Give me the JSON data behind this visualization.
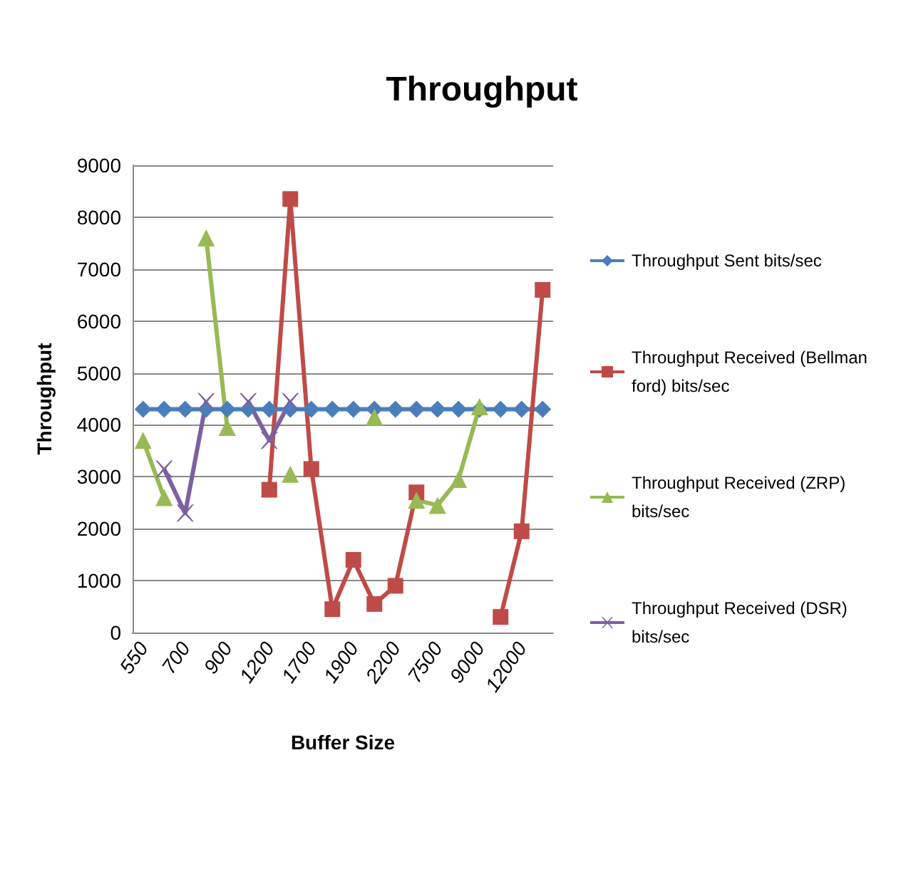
{
  "chart_data": {
    "type": "line",
    "title": "Throughput",
    "xlabel": "Buffer Size",
    "ylabel": "Throughput",
    "categories": [
      "550",
      null,
      "700",
      null,
      "900",
      null,
      "1200",
      null,
      "1700",
      null,
      "1900",
      null,
      "2200",
      null,
      "7500",
      null,
      "9000",
      null,
      "12000",
      null
    ],
    "series": [
      {
        "name": "Throughput Sent bits/sec",
        "color": "#4a7ebb",
        "marker": "diamond",
        "values": [
          4300,
          4300,
          4300,
          4300,
          4300,
          4300,
          4300,
          4300,
          4300,
          4300,
          4300,
          4300,
          4300,
          4300,
          4300,
          4300,
          4300,
          4300,
          4300,
          4300
        ]
      },
      {
        "name": "Throughput Received (Bellman ford) bits/sec",
        "color": "#be4b48",
        "marker": "square",
        "values": [
          null,
          null,
          null,
          null,
          null,
          null,
          2750,
          8350,
          3150,
          450,
          1400,
          550,
          900,
          2700,
          null,
          null,
          null,
          300,
          1950,
          6600
        ]
      },
      {
        "name": "Throughput Received (ZRP) bits/sec",
        "color": "#98b954",
        "marker": "triangle",
        "values": [
          3700,
          2600,
          null,
          7600,
          3950,
          null,
          null,
          3050,
          null,
          null,
          null,
          4150,
          null,
          2550,
          2450,
          2950,
          4350,
          null,
          null,
          null
        ]
      },
      {
        "name": "Throughput Received (DSR) bits/sec",
        "color": "#7d60a0",
        "marker": "cross",
        "values": [
          null,
          3150,
          2300,
          4450,
          null,
          4450,
          3700,
          4450,
          null,
          null,
          null,
          null,
          null,
          null,
          null,
          null,
          null,
          null,
          null,
          null
        ]
      }
    ],
    "ylim": [
      0,
      9000
    ],
    "yticks": [
      0,
      1000,
      2000,
      3000,
      4000,
      5000,
      6000,
      7000,
      8000,
      9000
    ],
    "grid": "y",
    "legend": "right"
  }
}
